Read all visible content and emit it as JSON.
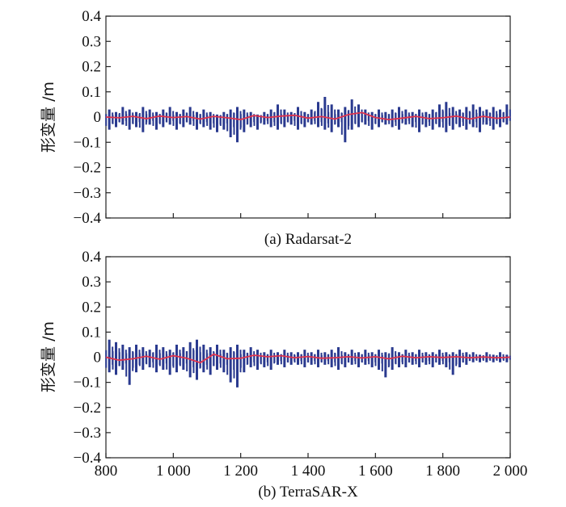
{
  "chart_data": [
    {
      "type": "line",
      "caption": "(a) Radarsat-2",
      "ylabel": "形变量 /m",
      "xlim": [
        800,
        2000
      ],
      "ylim": [
        -0.4,
        0.4
      ],
      "yticks": [
        "0.4",
        "0.3",
        "0.2",
        "0.1",
        "0",
        "−0.1",
        "−0.2",
        "−0.3",
        "−0.4"
      ],
      "ytick_values": [
        0.4,
        0.3,
        0.2,
        0.1,
        0,
        -0.1,
        -0.2,
        -0.3,
        -0.4
      ],
      "xtick_values": [
        800,
        1000,
        1200,
        1400,
        1600,
        1800,
        2000
      ],
      "xticks": [],
      "series": [
        {
          "type": "bars",
          "color": "#2a3a8f",
          "x": [
            810,
            830,
            850,
            870,
            890,
            910,
            930,
            950,
            970,
            990,
            1010,
            1030,
            1050,
            1070,
            1090,
            1110,
            1130,
            1150,
            1170,
            1190,
            1210,
            1230,
            1250,
            1270,
            1290,
            1310,
            1330,
            1350,
            1370,
            1390,
            1410,
            1430,
            1450,
            1470,
            1490,
            1510,
            1530,
            1550,
            1570,
            1590,
            1610,
            1630,
            1650,
            1670,
            1690,
            1710,
            1730,
            1750,
            1770,
            1790,
            1810,
            1830,
            1850,
            1870,
            1890,
            1910,
            1930,
            1950,
            1970,
            1990
          ],
          "hi": [
            0.03,
            0.02,
            0.04,
            0.03,
            0.02,
            0.04,
            0.03,
            0.02,
            0.03,
            0.04,
            0.02,
            0.03,
            0.04,
            0.02,
            0.03,
            0.02,
            0.01,
            0.02,
            0.03,
            0.04,
            0.03,
            0.02,
            0.01,
            0.02,
            0.03,
            0.05,
            0.03,
            0.02,
            0.04,
            0.02,
            0.03,
            0.06,
            0.08,
            0.05,
            0.03,
            0.04,
            0.07,
            0.05,
            0.03,
            0.02,
            0.03,
            0.02,
            0.03,
            0.04,
            0.03,
            0.02,
            0.03,
            0.02,
            0.03,
            0.05,
            0.06,
            0.04,
            0.03,
            0.04,
            0.05,
            0.04,
            0.03,
            0.04,
            0.03,
            0.05
          ],
          "lo": [
            -0.05,
            -0.04,
            -0.03,
            -0.05,
            -0.04,
            -0.06,
            -0.03,
            -0.05,
            -0.04,
            -0.03,
            -0.05,
            -0.04,
            -0.03,
            -0.05,
            -0.04,
            -0.05,
            -0.06,
            -0.05,
            -0.08,
            -0.1,
            -0.06,
            -0.04,
            -0.05,
            -0.03,
            -0.04,
            -0.05,
            -0.04,
            -0.03,
            -0.05,
            -0.04,
            -0.03,
            -0.04,
            -0.05,
            -0.06,
            -0.04,
            -0.1,
            -0.05,
            -0.04,
            -0.03,
            -0.05,
            -0.04,
            -0.03,
            -0.04,
            -0.05,
            -0.03,
            -0.04,
            -0.06,
            -0.04,
            -0.05,
            -0.04,
            -0.06,
            -0.05,
            -0.04,
            -0.05,
            -0.04,
            -0.06,
            -0.03,
            -0.05,
            -0.04,
            -0.03
          ]
        },
        {
          "type": "line",
          "color": "#e0334d",
          "x": [
            800,
            840,
            880,
            920,
            960,
            1000,
            1040,
            1080,
            1120,
            1160,
            1200,
            1240,
            1280,
            1320,
            1360,
            1400,
            1440,
            1480,
            1520,
            1560,
            1600,
            1640,
            1680,
            1720,
            1760,
            1800,
            1840,
            1880,
            1920,
            1960,
            2000
          ],
          "y": [
            0,
            -0.003,
            0.003,
            -0.006,
            0.004,
            -0.002,
            0.002,
            -0.008,
            0.003,
            -0.003,
            -0.01,
            0.006,
            -0.002,
            0.004,
            0.007,
            -0.004,
            0.002,
            -0.008,
            0.01,
            0.018,
            -0.002,
            -0.01,
            -0.004,
            0.003,
            -0.006,
            -0.003,
            0.004,
            -0.008,
            0.003,
            -0.005,
            0
          ]
        }
      ]
    },
    {
      "type": "line",
      "caption": "(b) TerraSAR-X",
      "ylabel": "形变量 /m",
      "xlim": [
        800,
        2000
      ],
      "ylim": [
        -0.4,
        0.4
      ],
      "yticks": [
        "0.4",
        "0.3",
        "0.2",
        "0.1",
        "0",
        "−0.1",
        "−0.2",
        "−0.3",
        "−0.4"
      ],
      "ytick_values": [
        0.4,
        0.3,
        0.2,
        0.1,
        0,
        -0.1,
        -0.2,
        -0.3,
        -0.4
      ],
      "xtick_values": [
        800,
        1000,
        1200,
        1400,
        1600,
        1800,
        2000
      ],
      "xticks": [
        "800",
        "1 000",
        "1 200",
        "1 400",
        "1 600",
        "1 800",
        "2 000"
      ],
      "series": [
        {
          "type": "bars",
          "color": "#2a3a8f",
          "x": [
            810,
            830,
            850,
            870,
            890,
            910,
            930,
            950,
            970,
            990,
            1010,
            1030,
            1050,
            1070,
            1090,
            1110,
            1130,
            1150,
            1170,
            1190,
            1210,
            1230,
            1250,
            1270,
            1290,
            1310,
            1330,
            1350,
            1370,
            1390,
            1410,
            1430,
            1450,
            1470,
            1490,
            1510,
            1530,
            1550,
            1570,
            1590,
            1610,
            1630,
            1650,
            1670,
            1690,
            1710,
            1730,
            1750,
            1770,
            1790,
            1810,
            1830,
            1850,
            1870,
            1890,
            1910,
            1930,
            1950,
            1970,
            1990
          ],
          "hi": [
            0.07,
            0.06,
            0.05,
            0.04,
            0.05,
            0.04,
            0.03,
            0.05,
            0.04,
            0.03,
            0.05,
            0.04,
            0.06,
            0.07,
            0.05,
            0.04,
            0.05,
            0.03,
            0.04,
            0.05,
            0.03,
            0.04,
            0.03,
            0.02,
            0.03,
            0.02,
            0.03,
            0.02,
            0.02,
            0.03,
            0.02,
            0.03,
            0.02,
            0.03,
            0.04,
            0.02,
            0.03,
            0.02,
            0.03,
            0.02,
            0.03,
            0.02,
            0.04,
            0.02,
            0.03,
            0.02,
            0.03,
            0.02,
            0.02,
            0.03,
            0.02,
            0.02,
            0.03,
            0.02,
            0.02,
            0.01,
            0.02,
            0.01,
            0.02,
            0.01
          ],
          "lo": [
            -0.06,
            -0.07,
            -0.05,
            -0.11,
            -0.06,
            -0.05,
            -0.04,
            -0.06,
            -0.05,
            -0.07,
            -0.06,
            -0.05,
            -0.08,
            -0.09,
            -0.06,
            -0.07,
            -0.05,
            -0.06,
            -0.1,
            -0.12,
            -0.06,
            -0.04,
            -0.05,
            -0.04,
            -0.05,
            -0.03,
            -0.04,
            -0.03,
            -0.03,
            -0.04,
            -0.03,
            -0.04,
            -0.03,
            -0.04,
            -0.05,
            -0.04,
            -0.03,
            -0.04,
            -0.03,
            -0.04,
            -0.05,
            -0.08,
            -0.05,
            -0.04,
            -0.04,
            -0.03,
            -0.04,
            -0.03,
            -0.04,
            -0.03,
            -0.04,
            -0.07,
            -0.04,
            -0.03,
            -0.02,
            -0.02,
            -0.02,
            -0.02,
            -0.02,
            -0.02
          ]
        },
        {
          "type": "line",
          "color": "#e0334d",
          "x": [
            800,
            840,
            880,
            920,
            960,
            1000,
            1040,
            1080,
            1120,
            1160,
            1200,
            1240,
            1280,
            1320,
            1360,
            1400,
            1440,
            1480,
            1520,
            1560,
            1600,
            1640,
            1680,
            1720,
            1760,
            1800,
            1840,
            1880,
            1920,
            1960,
            2000
          ],
          "y": [
            0,
            -0.012,
            -0.006,
            0.004,
            -0.008,
            0.006,
            -0.004,
            -0.022,
            0.012,
            -0.006,
            -0.004,
            0.008,
            0.002,
            0.006,
            -0.002,
            0.003,
            -0.004,
            -0.002,
            0.002,
            -0.003,
            0.002,
            -0.006,
            0.004,
            -0.002,
            0.002,
            -0.001,
            0.002,
            -0.002,
            0.001,
            -0.002,
            0
          ]
        }
      ]
    }
  ]
}
